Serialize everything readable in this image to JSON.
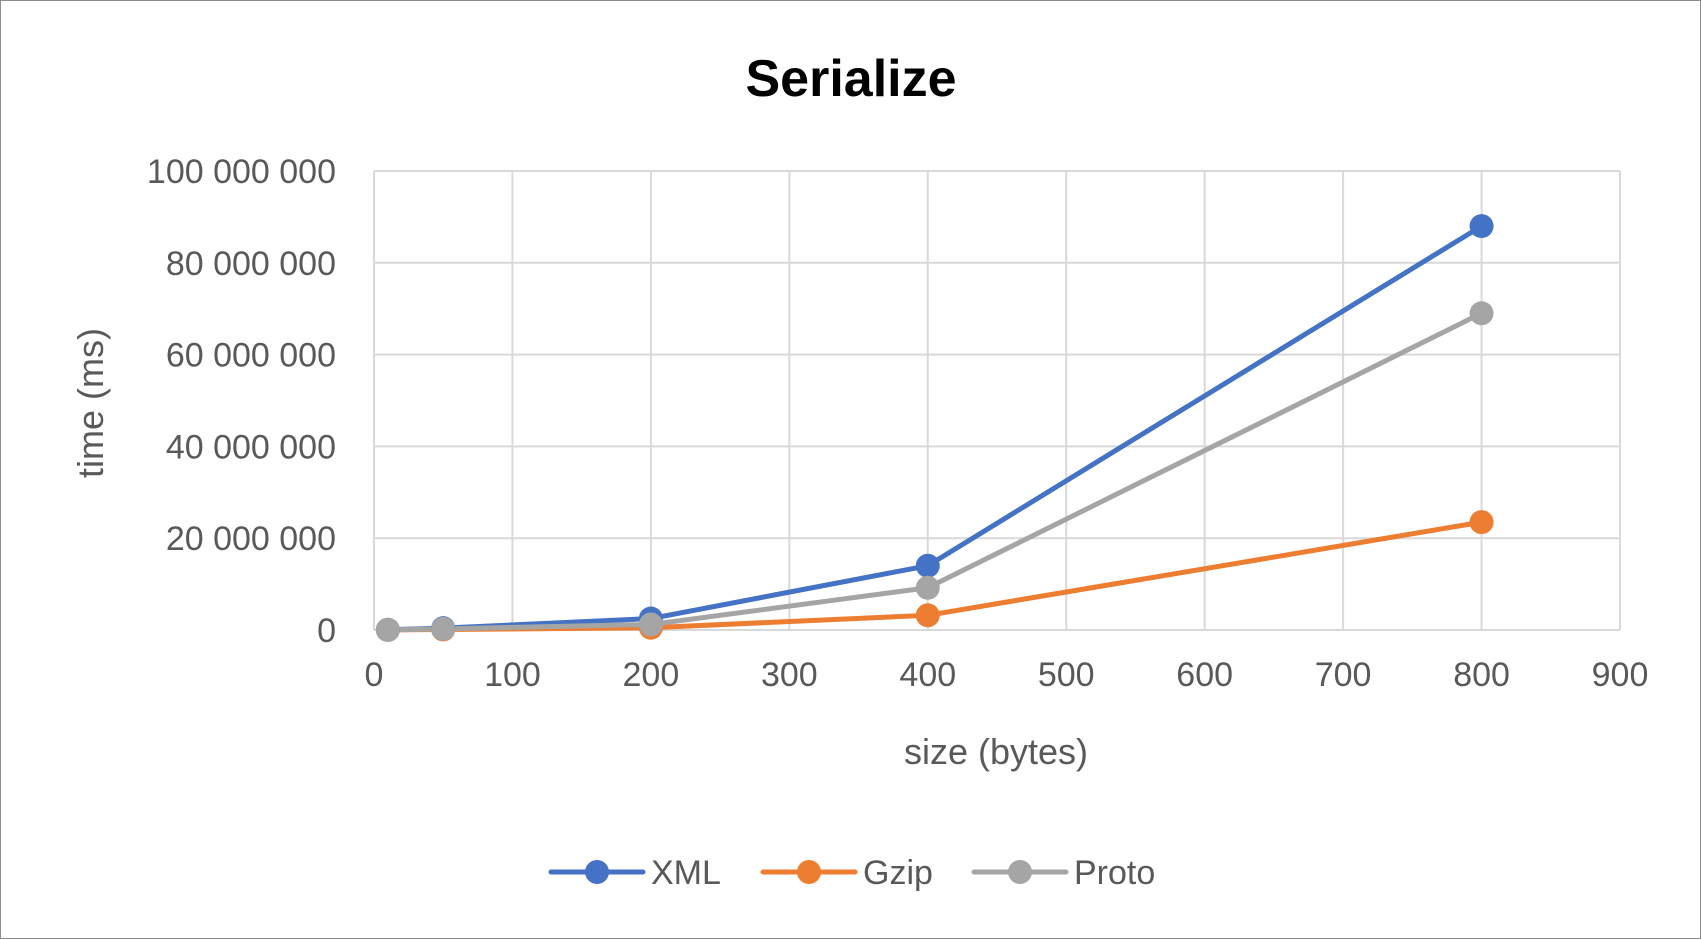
{
  "chart_data": {
    "type": "line",
    "title": "Serialize",
    "xlabel": "size (bytes)",
    "ylabel": "time (ms)",
    "xlim": [
      0,
      900
    ],
    "ylim": [
      0,
      100000000
    ],
    "x_ticks": [
      0,
      100,
      200,
      300,
      400,
      500,
      600,
      700,
      800,
      900
    ],
    "x_tick_labels": [
      "0",
      "100",
      "200",
      "300",
      "400",
      "500",
      "600",
      "700",
      "800",
      "900"
    ],
    "y_ticks": [
      0,
      20000000,
      40000000,
      60000000,
      80000000,
      100000000
    ],
    "y_tick_labels": [
      "0",
      "20 000 000",
      "40 000 000",
      "60 000 000",
      "80 000 000",
      "100 000 000"
    ],
    "grid": true,
    "legend_position": "bottom",
    "series": [
      {
        "name": "XML",
        "color": "#4472C4",
        "points": [
          {
            "x": 10,
            "y": 50000
          },
          {
            "x": 50,
            "y": 400000
          },
          {
            "x": 200,
            "y": 2500000
          },
          {
            "x": 400,
            "y": 14000000
          },
          {
            "x": 800,
            "y": 88000000
          }
        ]
      },
      {
        "name": "Gzip",
        "color": "#ED7D31",
        "points": [
          {
            "x": 10,
            "y": 20000
          },
          {
            "x": 50,
            "y": 100000
          },
          {
            "x": 200,
            "y": 500000
          },
          {
            "x": 400,
            "y": 3200000
          },
          {
            "x": 800,
            "y": 23500000
          }
        ]
      },
      {
        "name": "Proto",
        "color": "#A5A5A5",
        "points": [
          {
            "x": 10,
            "y": 30000
          },
          {
            "x": 50,
            "y": 250000
          },
          {
            "x": 200,
            "y": 1200000
          },
          {
            "x": 400,
            "y": 9200000
          },
          {
            "x": 800,
            "y": 69000000
          }
        ]
      }
    ]
  }
}
